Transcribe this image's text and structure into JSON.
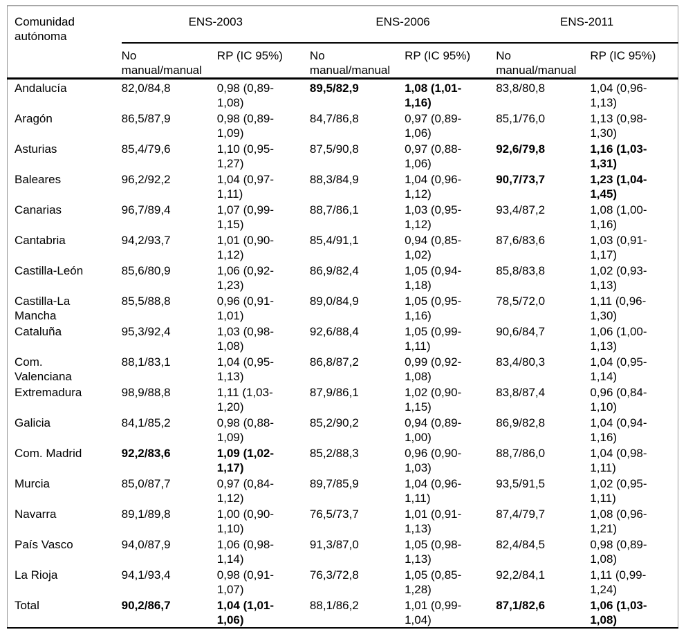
{
  "table": {
    "header": {
      "region_label": "Comunidad autónoma",
      "groups": [
        "ENS-2003",
        "ENS-2006",
        "ENS-2011"
      ],
      "sub_no": "No manual/manual",
      "sub_rp": "RP (IC 95%)"
    },
    "rows": [
      {
        "region": "Andalucía",
        "cells": [
          "82,0/84,8",
          "0,98 (0,89-1,08)",
          "89,5/82,9",
          "1,08 (1,01-1,16)",
          "83,8/80,8",
          "1,04 (0,96-1,13)"
        ],
        "bold": [
          2,
          3
        ]
      },
      {
        "region": "Aragón",
        "cells": [
          "86,5/87,9",
          "0,98 (0,89-1,09)",
          "84,7/86,8",
          "0,97 (0,89-1,06)",
          "85,1/76,0",
          "1,13 (0,98-1,30)"
        ],
        "bold": []
      },
      {
        "region": "Asturias",
        "cells": [
          "85,4/79,6",
          "1,10 (0,95-1,27)",
          "87,5/90,8",
          "0,97 (0,88-1,06)",
          "92,6/79,8",
          "1,16 (1,03-1,31)"
        ],
        "bold": [
          4,
          5
        ]
      },
      {
        "region": "Baleares",
        "cells": [
          "96,2/92,2",
          "1,04 (0,97-1,11)",
          "88,3/84,9",
          "1,04 (0,96-1,12)",
          "90,7/73,7",
          "1,23 (1,04-1,45)"
        ],
        "bold": [
          4,
          5
        ]
      },
      {
        "region": "Canarias",
        "cells": [
          "96,7/89,4",
          "1,07 (0,99-1,15)",
          "88,7/86,1",
          "1,03 (0,95-1,12)",
          "93,4/87,2",
          "1,08 (1,00-1,16)"
        ],
        "bold": []
      },
      {
        "region": "Cantabria",
        "cells": [
          "94,2/93,7",
          "1,01 (0,90-1,12)",
          "85,4/91,1",
          "0,94 (0,85-1,02)",
          "87,6/83,6",
          "1,03 (0,91-1,17)"
        ],
        "bold": []
      },
      {
        "region": "Castilla-León",
        "cells": [
          "85,6/80,9",
          "1,06 (0,92-1,23)",
          "86,9/82,4",
          "1,05 (0,94-1,18)",
          "85,8/83,8",
          "1,02 (0,93-1,13)"
        ],
        "bold": []
      },
      {
        "region": "Castilla-La Mancha",
        "cells": [
          "85,5/88,8",
          "0,96 (0,91-1,01)",
          "89,0/84,9",
          "1,05 (0,95-1,16)",
          "78,5/72,0",
          "1,11 (0,96-1,30)"
        ],
        "bold": []
      },
      {
        "region": "Cataluña",
        "cells": [
          "95,3/92,4",
          "1,03 (0,98-1,08)",
          "92,6/88,4",
          "1,05 (0,99-1,11)",
          "90,6/84,7",
          "1,06 (1,00-1,13)"
        ],
        "bold": []
      },
      {
        "region": "Com. Valenciana",
        "cells": [
          "88,1/83,1",
          "1,04 (0,95-1,13)",
          "86,8/87,2",
          "0,99 (0,92-1,08)",
          "83,4/80,3",
          "1,04 (0,95-1,14)"
        ],
        "bold": []
      },
      {
        "region": "Extremadura",
        "cells": [
          "98,9/88,8",
          "1,11 (1,03-1,20)",
          "87,9/86,1",
          "1,02 (0,90-1,15)",
          "83,8/87,4",
          "0,96 (0,84-1,10)"
        ],
        "bold": []
      },
      {
        "region": "Galicia",
        "cells": [
          "84,1/85,2",
          "0,98 (0,88-1,09)",
          "85,2/90,2",
          "0,94 (0,89-1,00)",
          "86,9/82,8",
          "1,04 (0,94-1,16)"
        ],
        "bold": []
      },
      {
        "region": "Com. Madrid",
        "cells": [
          "92,2/83,6",
          "1,09 (1,02-1,17)",
          "85,2/88,3",
          "0,96 (0,90-1,03)",
          "88,7/86,0",
          "1,04 (0,98-1,11)"
        ],
        "bold": [
          0,
          1
        ]
      },
      {
        "region": "Murcia",
        "cells": [
          "85,0/87,7",
          "0,97 (0,84-1,12)",
          "89,7/85,9",
          "1,04 (0,96-1,11)",
          "93,5/91,5",
          "1,02 (0,95-1,11)"
        ],
        "bold": []
      },
      {
        "region": "Navarra",
        "cells": [
          "89,1/89,8",
          "1,00 (0,90-1,10)",
          "76,5/73,7",
          "1,01 (0,91-1,13)",
          "87,4/79,7",
          "1,08 (0,96-1,21)"
        ],
        "bold": []
      },
      {
        "region": "País Vasco",
        "cells": [
          "94,0/87,9",
          "1,06 (0,98-1,14)",
          "91,3/87,0",
          "1,05 (0,98-1,13)",
          "82,4/84,5",
          "0,98 (0,89-1,08)"
        ],
        "bold": []
      },
      {
        "region": "La Rioja",
        "cells": [
          "94,1/93,4",
          "0,98 (0,91-1,07)",
          "76,3/72,8",
          "1,05 (0,85-1,28)",
          "92,2/84,1",
          "1,11 (0,99-1,24)"
        ],
        "bold": []
      },
      {
        "region": "Total",
        "cells": [
          "90,2/86,7",
          "1,04 (1,01-1,06)",
          "88,1/86,2",
          "1,01 (0,99-1,04)",
          "87,1/82,6",
          "1,06 (1,03-1,08)"
        ],
        "bold": [
          0,
          1,
          4,
          5
        ]
      }
    ]
  }
}
